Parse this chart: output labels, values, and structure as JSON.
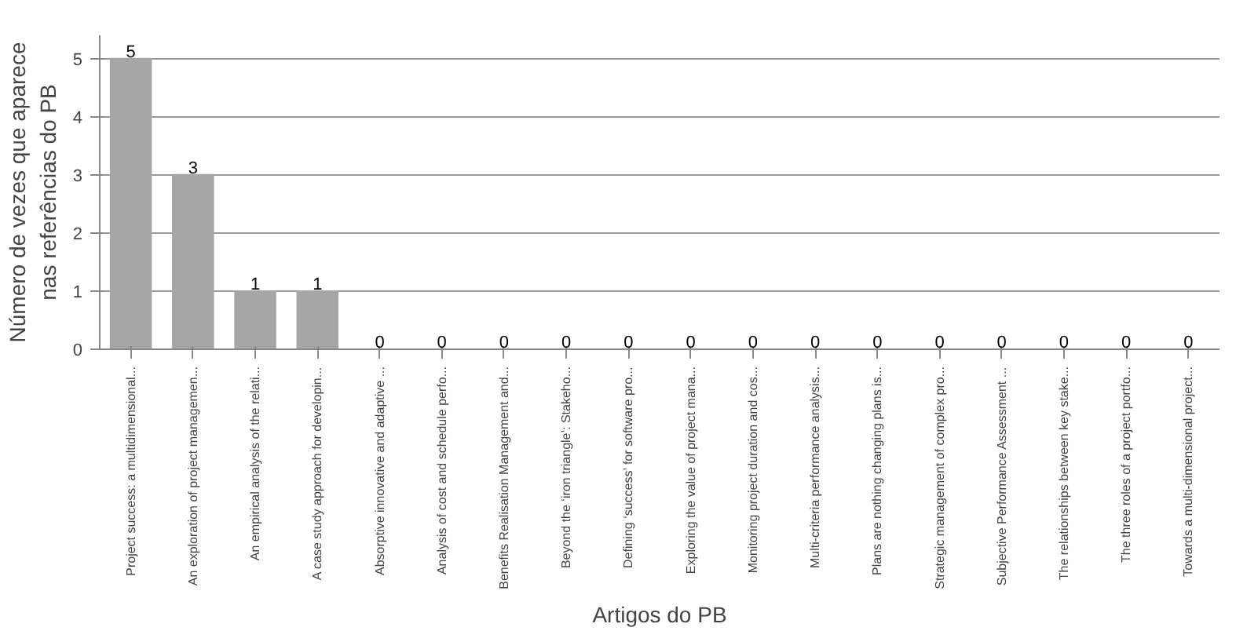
{
  "chart_data": {
    "type": "bar",
    "xlabel": "Artigos do PB",
    "ylabel": "Número de vezes que aparece nas referências do PB",
    "categories": [
      "Project success: a multidimensional...",
      "An exploration of project managemen...",
      "An empirical analysis of the relati...",
      "A case study approach for developin...",
      "Absorptive innovative and adaptive ...",
      "Analysis of cost and schedule perfo...",
      "Benefits Realisation Management and...",
      "Beyond the ‘iron triangle’: Stakeho...",
      "Defining ‘success’ for software pro...",
      "Exploring the value of project mana...",
      "Monitoring project duration and cos...",
      "Multi-criteria performance analysis...",
      "Plans are nothing changing plans is...",
      "Strategic management of complex pro...",
      "Subjective Performance Assessment ...",
      "The relationships between key stake...",
      "The three roles of a project portfo...",
      "Towards a multi-dimensional project..."
    ],
    "values": [
      5,
      3,
      1,
      1,
      0,
      0,
      0,
      0,
      0,
      0,
      0,
      0,
      0,
      0,
      0,
      0,
      0,
      0
    ],
    "color": "#a6a6a6",
    "data_labels": true,
    "ylim": [
      0,
      5
    ],
    "yticks": [
      0,
      1,
      2,
      3,
      4,
      5
    ],
    "grid": "y"
  }
}
